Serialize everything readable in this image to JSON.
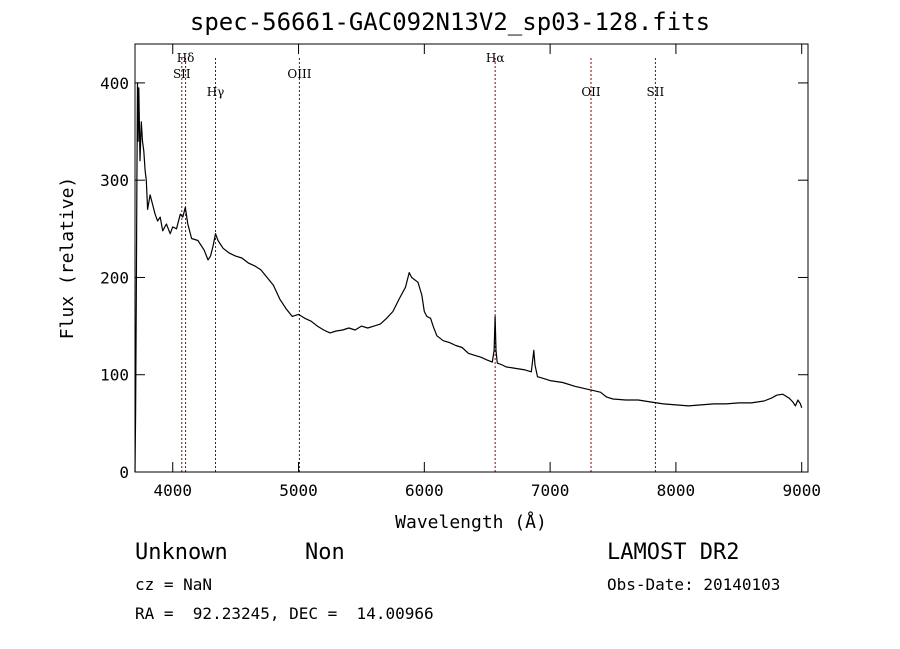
{
  "header": {
    "title": "spec-56661-GAC092N13V2_sp03-128.fits"
  },
  "info": {
    "class": "Unknown",
    "subclass": "Non",
    "survey": "LAMOST DR2",
    "cz": "cz = NaN",
    "obs_date": "Obs-Date: 20140103",
    "radec": "RA =  92.23245, DEC =  14.00966"
  },
  "chart_data": {
    "type": "line",
    "title": "spec-56661-GAC092N13V2_sp03-128.fits",
    "xlabel": "Wavelength (Å)",
    "ylabel": "Flux (relative)",
    "xlim": [
      3700,
      9050
    ],
    "ylim": [
      0,
      440
    ],
    "xticks": [
      4000,
      5000,
      6000,
      7000,
      8000,
      9000
    ],
    "yticks": [
      0,
      100,
      200,
      300,
      400
    ],
    "line_color": "#000000",
    "marker_color": "#8b0000",
    "spectral_lines": [
      {
        "label": "Hδ",
        "x": 4102,
        "row": 0
      },
      {
        "label": "SII",
        "x": 4072,
        "row": 1
      },
      {
        "label": "Hγ",
        "x": 4340,
        "row": 2
      },
      {
        "label": "OIII",
        "x": 5007,
        "row": 1
      },
      {
        "label": "Hα",
        "x": 6563,
        "row": 0
      },
      {
        "label": "OII",
        "x": 7325,
        "row": 2
      },
      {
        "label": "SII",
        "x": 7837,
        "row": 2
      }
    ],
    "series": [
      {
        "values": [
          [
            3700,
            0
          ],
          [
            3705,
            60
          ],
          [
            3710,
            180
          ],
          [
            3715,
            300
          ],
          [
            3720,
            400
          ],
          [
            3725,
            340
          ],
          [
            3730,
            395
          ],
          [
            3740,
            320
          ],
          [
            3750,
            360
          ],
          [
            3760,
            340
          ],
          [
            3770,
            330
          ],
          [
            3780,
            310
          ],
          [
            3790,
            300
          ],
          [
            3800,
            270
          ],
          [
            3820,
            285
          ],
          [
            3840,
            275
          ],
          [
            3860,
            265
          ],
          [
            3880,
            258
          ],
          [
            3900,
            262
          ],
          [
            3920,
            248
          ],
          [
            3950,
            255
          ],
          [
            3980,
            245
          ],
          [
            4000,
            252
          ],
          [
            4030,
            250
          ],
          [
            4060,
            265
          ],
          [
            4080,
            262
          ],
          [
            4100,
            272
          ],
          [
            4120,
            255
          ],
          [
            4150,
            240
          ],
          [
            4200,
            238
          ],
          [
            4250,
            228
          ],
          [
            4280,
            218
          ],
          [
            4300,
            222
          ],
          [
            4320,
            232
          ],
          [
            4340,
            245
          ],
          [
            4360,
            238
          ],
          [
            4400,
            230
          ],
          [
            4450,
            225
          ],
          [
            4500,
            222
          ],
          [
            4550,
            220
          ],
          [
            4600,
            215
          ],
          [
            4650,
            212
          ],
          [
            4700,
            208
          ],
          [
            4750,
            200
          ],
          [
            4800,
            192
          ],
          [
            4850,
            178
          ],
          [
            4900,
            168
          ],
          [
            4950,
            160
          ],
          [
            5000,
            162
          ],
          [
            5050,
            158
          ],
          [
            5100,
            155
          ],
          [
            5150,
            150
          ],
          [
            5200,
            146
          ],
          [
            5250,
            143
          ],
          [
            5300,
            145
          ],
          [
            5350,
            146
          ],
          [
            5400,
            148
          ],
          [
            5450,
            146
          ],
          [
            5500,
            150
          ],
          [
            5550,
            148
          ],
          [
            5600,
            150
          ],
          [
            5650,
            152
          ],
          [
            5700,
            158
          ],
          [
            5750,
            165
          ],
          [
            5800,
            178
          ],
          [
            5850,
            190
          ],
          [
            5880,
            205
          ],
          [
            5900,
            200
          ],
          [
            5950,
            195
          ],
          [
            5980,
            182
          ],
          [
            6000,
            165
          ],
          [
            6020,
            160
          ],
          [
            6050,
            158
          ],
          [
            6070,
            150
          ],
          [
            6100,
            140
          ],
          [
            6150,
            135
          ],
          [
            6200,
            133
          ],
          [
            6250,
            130
          ],
          [
            6300,
            128
          ],
          [
            6350,
            122
          ],
          [
            6400,
            120
          ],
          [
            6450,
            118
          ],
          [
            6500,
            115
          ],
          [
            6540,
            113
          ],
          [
            6555,
            125
          ],
          [
            6563,
            160
          ],
          [
            6570,
            125
          ],
          [
            6580,
            112
          ],
          [
            6620,
            110
          ],
          [
            6650,
            108
          ],
          [
            6700,
            107
          ],
          [
            6750,
            106
          ],
          [
            6800,
            105
          ],
          [
            6850,
            103
          ],
          [
            6870,
            125
          ],
          [
            6880,
            110
          ],
          [
            6900,
            98
          ],
          [
            6950,
            96
          ],
          [
            7000,
            94
          ],
          [
            7100,
            92
          ],
          [
            7200,
            88
          ],
          [
            7300,
            85
          ],
          [
            7400,
            82
          ],
          [
            7450,
            77
          ],
          [
            7500,
            75
          ],
          [
            7600,
            74
          ],
          [
            7700,
            74
          ],
          [
            7800,
            72
          ],
          [
            7900,
            70
          ],
          [
            8000,
            69
          ],
          [
            8100,
            68
          ],
          [
            8200,
            69
          ],
          [
            8300,
            70
          ],
          [
            8400,
            70
          ],
          [
            8500,
            71
          ],
          [
            8600,
            71
          ],
          [
            8700,
            73
          ],
          [
            8760,
            76
          ],
          [
            8800,
            79
          ],
          [
            8850,
            80
          ],
          [
            8900,
            76
          ],
          [
            8930,
            72
          ],
          [
            8950,
            68
          ],
          [
            8970,
            74
          ],
          [
            8990,
            70
          ],
          [
            9000,
            66
          ]
        ]
      }
    ]
  }
}
